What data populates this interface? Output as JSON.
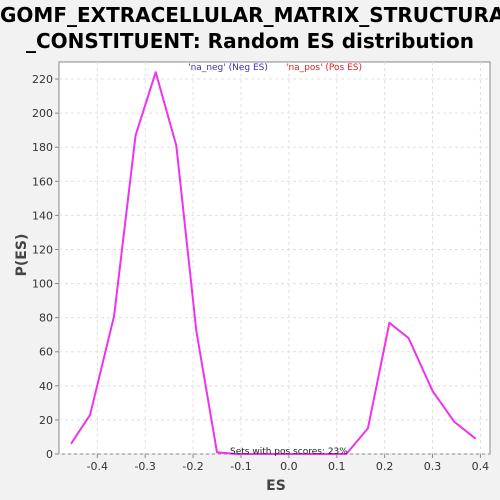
{
  "chart_data": {
    "type": "line",
    "title_line1": "GOMF_EXTRACELLULAR_MATRIX_STRUCTURAL",
    "title_line2": "_CONSTITUENT: Random ES distribution",
    "xlabel": "ES",
    "ylabel": "P(ES)",
    "xlim": [
      -0.48,
      0.42
    ],
    "ylim": [
      0,
      230
    ],
    "xticks": [
      -0.4,
      -0.3,
      -0.2,
      -0.1,
      0.0,
      0.1,
      0.2,
      0.3,
      0.4
    ],
    "xtick_labels": [
      "-0.4",
      "-0.3",
      "-0.2",
      "-0.1",
      "0.0",
      "0.1",
      "0.2",
      "0.3",
      "0.4"
    ],
    "yticks": [
      0,
      20,
      40,
      60,
      80,
      100,
      120,
      140,
      160,
      180,
      200,
      220
    ],
    "ytick_labels": [
      "0",
      "20",
      "40",
      "60",
      "80",
      "100",
      "120",
      "140",
      "160",
      "180",
      "200",
      "220"
    ],
    "grid": true,
    "legend": [
      {
        "label": "'na_neg' (Neg ES)",
        "color": "#3333cc"
      },
      {
        "label": "'na_pos' (Pos ES)",
        "color": "#dd2222"
      }
    ],
    "annotation": "Sets with pos scores: 23%",
    "series": [
      {
        "color": "#ee33ee",
        "x": [
          -0.455,
          -0.415,
          -0.365,
          -0.32,
          -0.278,
          -0.235,
          -0.193,
          -0.15,
          -0.11,
          -0.065,
          -0.02,
          0.02,
          0.065,
          0.12,
          0.165,
          0.21,
          0.25,
          0.3,
          0.345,
          0.39
        ],
        "y": [
          6,
          23,
          81,
          187,
          224,
          181,
          72,
          1,
          0,
          0,
          0,
          0,
          0,
          0,
          15,
          77,
          68,
          37,
          19,
          9
        ]
      }
    ]
  }
}
